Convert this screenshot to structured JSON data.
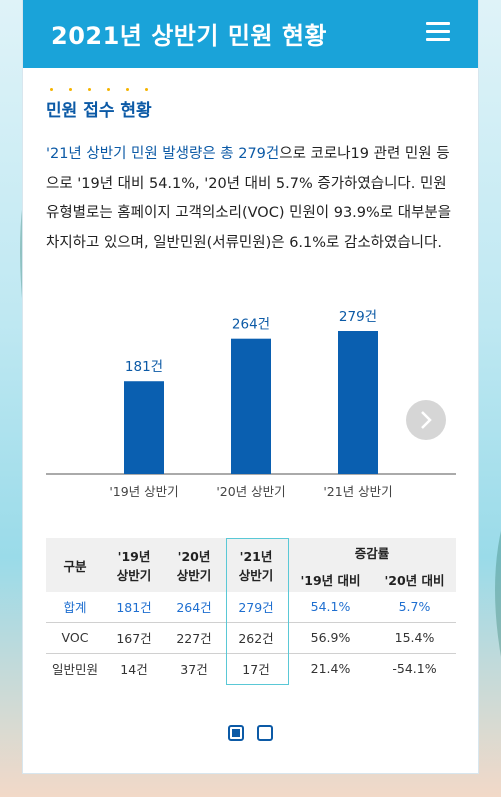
{
  "header": {
    "title": "2021년 상반기 민원 현황",
    "menu_icon": "hamburger-menu-icon"
  },
  "section": {
    "title": "민원 접수 현황"
  },
  "paragraph": {
    "highlight": "'21년 상반기 민원 발생량은 총 279건",
    "rest": "으로 코로나19 관련 민원 등으로 '19년 대비 54.1%, '20년 대비 5.7% 증가하였습니다. 민원 유형별로는 홈페이지 고객의소리(VOC) 민원이 93.9%로 대부분을 차지하고 있으며, 일반민원(서류민원)은 6.1%로 감소하였습니다."
  },
  "chart_data": {
    "type": "bar",
    "categories": [
      "'19년 상반기",
      "'20년 상반기",
      "'21년 상반기"
    ],
    "values": [
      181,
      264,
      279
    ],
    "data_labels": [
      "181건",
      "264건",
      "279건"
    ],
    "colors": {
      "bar": "#0a5fb0",
      "label": "#0c5aa6",
      "axis": "#555555"
    },
    "title": "",
    "xlabel": "",
    "ylabel": "",
    "ylim": [
      0,
      279
    ],
    "grid": false
  },
  "table": {
    "headers": {
      "col1": "구분",
      "col2": "'19년 상반기",
      "col3": "'20년 상반기",
      "col4": "'21년 상반기",
      "group": "증감률",
      "sub1": "'19년 대비",
      "sub2": "'20년 대비"
    },
    "rows": [
      {
        "label": "합계",
        "y19": "181건",
        "y20": "264건",
        "y21": "279건",
        "vs19": "54.1%",
        "vs20": "5.7%"
      },
      {
        "label": "VOC",
        "y19": "167건",
        "y20": "227건",
        "y21": "262건",
        "vs19": "56.9%",
        "vs20": "15.4%"
      },
      {
        "label": "일반민원",
        "y19": "14건",
        "y20": "37건",
        "y21": "17건",
        "vs19": "21.4%",
        "vs20": "-54.1%"
      }
    ]
  },
  "pager": {
    "pages": 2,
    "active": 1
  }
}
